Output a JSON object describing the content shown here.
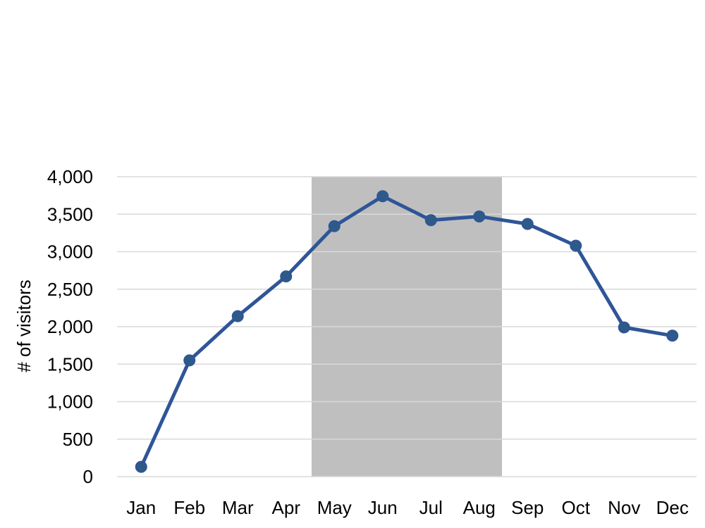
{
  "chart_data": {
    "type": "line",
    "title": "",
    "xlabel": "",
    "ylabel": "# of visitors",
    "categories": [
      "Jan",
      "Feb",
      "Mar",
      "Apr",
      "May",
      "Jun",
      "Jul",
      "Aug",
      "Sep",
      "Oct",
      "Nov",
      "Dec"
    ],
    "series": [
      {
        "values": [
          130,
          1550,
          2140,
          2670,
          3340,
          3740,
          3420,
          3470,
          3370,
          3080,
          1990,
          1880
        ],
        "color": "#2f5597"
      }
    ],
    "ylim": [
      0,
      4000
    ],
    "yticks": [
      0,
      500,
      1000,
      1500,
      2000,
      2500,
      3000,
      3500,
      4000
    ],
    "ytick_labels": [
      "0",
      "500",
      "1,000",
      "1,500",
      "2,000",
      "2,500",
      "3,000",
      "3,500",
      "4,000"
    ],
    "grid": true,
    "legend": "none",
    "highlight_band": {
      "from_category": "May",
      "to_category": "Aug",
      "color": "#bfbfbf"
    }
  }
}
